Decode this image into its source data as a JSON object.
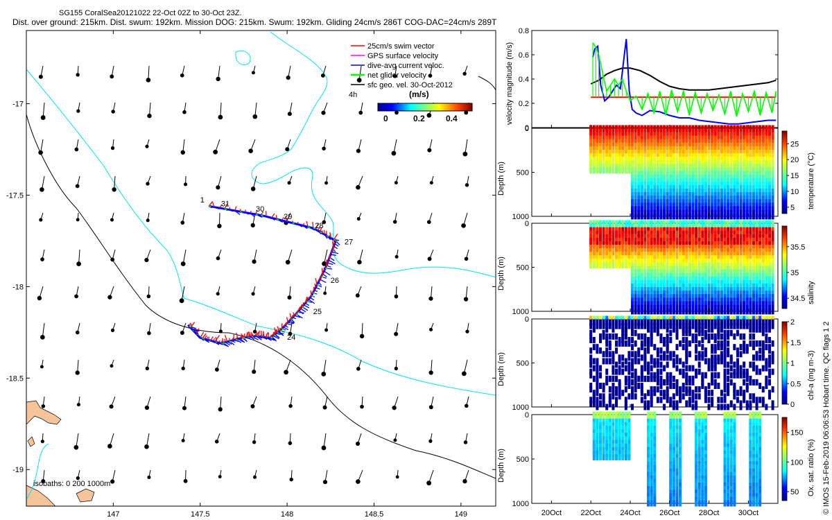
{
  "title_line1": "SG155 CoralSea20121022 22-Oct 02Z to 30-Oct 23Z.",
  "title_line2": "Dist. over ground: 215km. Dist. swum: 192km. Mission DOG: 215km. Swum: 192km. Gliding 24cm/s 286T COG-DAC=24cm/s 289T",
  "credit": "© IMOS 15-Feb-2019 06:06:53 Hobart time. QC flags 1  2",
  "colors": {
    "swim": "#ff0000",
    "gps": "#ff00ff",
    "dac": "#0000ff",
    "net": "#00ff00",
    "geo": "#000000",
    "isobath_0": "#00e5ee",
    "isobath_1000": "#000000",
    "land": "#f5c49a"
  },
  "chart_data": [
    {
      "type": "scatter",
      "name": "map",
      "xlim": [
        146.5,
        149.2
      ],
      "ylim": [
        -19.2,
        -16.6
      ],
      "xticks": [
        "147",
        "147.5",
        "148",
        "148.5",
        "149"
      ],
      "yticks": [
        "-17",
        "-17.5",
        "-18",
        "-18.5",
        "-19"
      ],
      "legend": [
        "25cm/s swim vector",
        "GPS surface velocity",
        "dive-avg current veloc.",
        "net glider velocity",
        "sfc geo. vel. 30-Oct-2012"
      ],
      "scale_label": "4h",
      "colorbar_label": "(m/s)",
      "colorbar_ticks": [
        "0",
        "0.2",
        "0.4"
      ],
      "isobaths_label": "isobaths: 0   200  1000m",
      "track": [
        [
          147.55,
          -17.56
        ],
        [
          147.85,
          -17.61
        ],
        [
          148.15,
          -17.68
        ],
        [
          148.28,
          -17.75
        ],
        [
          148.22,
          -17.9
        ],
        [
          148.14,
          -18.05
        ],
        [
          148.05,
          -18.15
        ],
        [
          147.96,
          -18.24
        ],
        [
          147.9,
          -18.28
        ],
        [
          147.82,
          -18.27
        ],
        [
          147.74,
          -18.28
        ],
        [
          147.62,
          -18.31
        ],
        [
          147.5,
          -18.28
        ],
        [
          147.43,
          -18.21
        ]
      ],
      "day_labels": [
        {
          "label": "1",
          "lon": 147.5,
          "lat": -17.54
        },
        {
          "label": "31",
          "lon": 147.62,
          "lat": -17.56
        },
        {
          "label": "30",
          "lon": 147.82,
          "lat": -17.59
        },
        {
          "label": "29",
          "lon": 147.98,
          "lat": -17.63
        },
        {
          "label": "28",
          "lon": 148.16,
          "lat": -17.68
        },
        {
          "label": "27",
          "lon": 148.33,
          "lat": -17.77
        },
        {
          "label": "26",
          "lon": 148.25,
          "lat": -17.98
        },
        {
          "label": "25",
          "lon": 148.15,
          "lat": -18.15
        },
        {
          "label": "24",
          "lon": 148.0,
          "lat": -18.29
        }
      ]
    },
    {
      "type": "line",
      "name": "velocity",
      "ylabel": "velocity magnitude (m/s)",
      "ylim": [
        0,
        0.8
      ],
      "yticks": [
        "0",
        "0.2",
        "0.4",
        "0.6",
        "0.8"
      ],
      "xlim_days": [
        19,
        31.5
      ],
      "series": [
        {
          "name": "geostrophic",
          "color": "#000000",
          "x": [
            22.0,
            22.4,
            22.8,
            23.2,
            23.6,
            24.0,
            24.5,
            25.0,
            25.5,
            26.0,
            26.5,
            27.0,
            27.5,
            28.0,
            28.5,
            29.0,
            29.5,
            30.0,
            30.5,
            31.0,
            31.4
          ],
          "values": [
            0.36,
            0.39,
            0.44,
            0.47,
            0.49,
            0.49,
            0.47,
            0.43,
            0.38,
            0.34,
            0.32,
            0.31,
            0.31,
            0.31,
            0.32,
            0.33,
            0.34,
            0.35,
            0.36,
            0.37,
            0.39
          ]
        },
        {
          "name": "swim",
          "color": "#ff0000",
          "x": [
            22.0,
            31.4
          ],
          "values": [
            0.25,
            0.25
          ]
        },
        {
          "name": "dac",
          "color": "#0000ff",
          "x": [
            22.1,
            22.2,
            22.35,
            22.5,
            22.7,
            22.9,
            23.1,
            23.3,
            23.5,
            23.7,
            23.8,
            23.95,
            24.1,
            24.3,
            24.6,
            25.0,
            25.5,
            26.0,
            26.5,
            27.0,
            27.5,
            28.0,
            28.5,
            29.0,
            29.5,
            30.0,
            30.5,
            31.0,
            31.4
          ],
          "values": [
            0.58,
            0.65,
            0.67,
            0.35,
            0.22,
            0.25,
            0.3,
            0.35,
            0.32,
            0.6,
            0.73,
            0.3,
            0.15,
            0.12,
            0.1,
            0.14,
            0.13,
            0.1,
            0.08,
            0.08,
            0.06,
            0.05,
            0.04,
            0.03,
            0.03,
            0.04,
            0.05,
            0.06,
            0.06
          ]
        },
        {
          "name": "net",
          "color": "#00ff00",
          "x": [
            22.1,
            22.25,
            22.4,
            22.6,
            22.8,
            23.0,
            23.2,
            23.4,
            23.6,
            23.8,
            24.0,
            24.3,
            24.6,
            24.9,
            25.2,
            25.5,
            25.8,
            26.1,
            26.4,
            26.7,
            27.0,
            27.3,
            27.6,
            27.9,
            28.2,
            28.5,
            28.8,
            29.1,
            29.4,
            29.7,
            30.0,
            30.3,
            30.6,
            30.9,
            31.2,
            31.4
          ],
          "values": [
            0.7,
            0.66,
            0.6,
            0.45,
            0.3,
            0.35,
            0.4,
            0.35,
            0.4,
            0.3,
            0.22,
            0.26,
            0.15,
            0.28,
            0.12,
            0.3,
            0.1,
            0.31,
            0.13,
            0.3,
            0.1,
            0.29,
            0.12,
            0.28,
            0.14,
            0.27,
            0.11,
            0.3,
            0.09,
            0.28,
            0.13,
            0.3,
            0.1,
            0.29,
            0.12,
            0.3
          ]
        }
      ]
    },
    {
      "type": "heatmap",
      "name": "temperature",
      "ylabel": "Depth (m)",
      "ylim": [
        1000,
        0
      ],
      "yticks": [
        "0",
        "500",
        "1000"
      ],
      "colorbar_label": "temperature (°C)",
      "colorbar_ticks": [
        "5",
        "10",
        "15",
        "20",
        "25"
      ],
      "clim": [
        3,
        29
      ],
      "profile_start_day": 22.0,
      "profile_end_day": 31.4,
      "max_depth_before_day24": 500,
      "surface_min_max": [
        5,
        28
      ]
    },
    {
      "type": "heatmap",
      "name": "salinity",
      "ylabel": "Depth (m)",
      "ylim": [
        1000,
        0
      ],
      "yticks": [
        "0",
        "500",
        "1000"
      ],
      "colorbar_label": "salinity",
      "colorbar_ticks": [
        "34.5",
        "35",
        "35.5"
      ],
      "clim": [
        34.3,
        35.9
      ],
      "profile_start_day": 22.0,
      "profile_end_day": 31.4
    },
    {
      "type": "heatmap",
      "name": "chlorophyll",
      "ylabel": "Depth (m)",
      "ylim": [
        1000,
        0
      ],
      "yticks": [
        "0",
        "500",
        "1000"
      ],
      "colorbar_label": "chl-a (mg m-3)",
      "colorbar_ticks": [
        "0",
        "0.5",
        "1",
        "1.5",
        "2"
      ],
      "clim": [
        0,
        2
      ]
    },
    {
      "type": "heatmap",
      "name": "oxygen",
      "ylabel": "Depth (m)",
      "ylim": [
        1000,
        0
      ],
      "yticks": [
        "0",
        "500",
        "1000"
      ],
      "xticks": [
        "20Oct",
        "22Oct",
        "24Oct",
        "26Oct",
        "28Oct",
        "30Oct"
      ],
      "colorbar_label": "Ox. sat. ratio (%)",
      "colorbar_ticks": [
        "50",
        "100",
        "150"
      ],
      "clim": [
        35,
        175
      ]
    }
  ]
}
